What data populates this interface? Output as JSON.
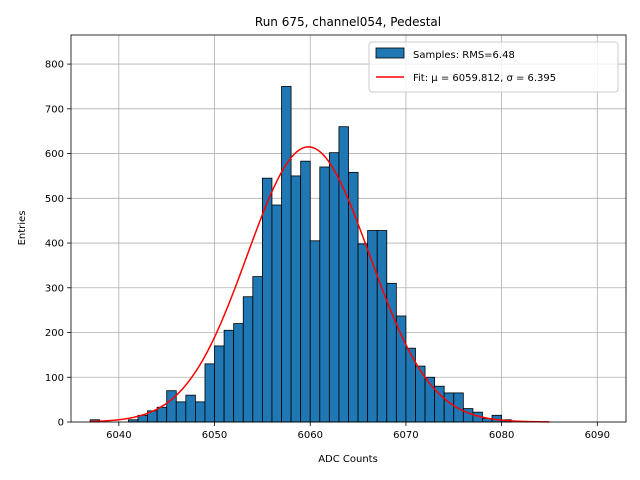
{
  "chart_data": {
    "type": "bar",
    "title": "Run 675, channel054, Pedestal",
    "xlabel": "ADC Counts",
    "ylabel": "Entries",
    "xlim": [
      6035,
      6093
    ],
    "ylim": [
      0,
      865
    ],
    "xticks": [
      6040,
      6050,
      6060,
      6070,
      6080,
      6090
    ],
    "yticks": [
      0,
      100,
      200,
      300,
      400,
      500,
      600,
      700,
      800
    ],
    "grid": true,
    "legend_position": "top-right",
    "histogram": {
      "name": "Samples: RMS=6.48",
      "color": "#1f77b4",
      "edge_color": "#000000",
      "bin_start": 6037,
      "bin_width": 1,
      "values": [
        5,
        0,
        0,
        0,
        5,
        15,
        25,
        33,
        70,
        45,
        60,
        45,
        130,
        170,
        205,
        220,
        280,
        325,
        545,
        485,
        750,
        550,
        583,
        405,
        570,
        602,
        660,
        558,
        398,
        428,
        428,
        310,
        237,
        165,
        125,
        100,
        80,
        65,
        65,
        30,
        22,
        8,
        15,
        5,
        0
      ]
    },
    "fit": {
      "name": "Fit: μ = 6059.812, σ = 6.395",
      "color": "#ff0000",
      "mu": 6059.812,
      "sigma": 6.395,
      "amplitude": 615,
      "x_range": [
        6037,
        6085
      ]
    }
  }
}
